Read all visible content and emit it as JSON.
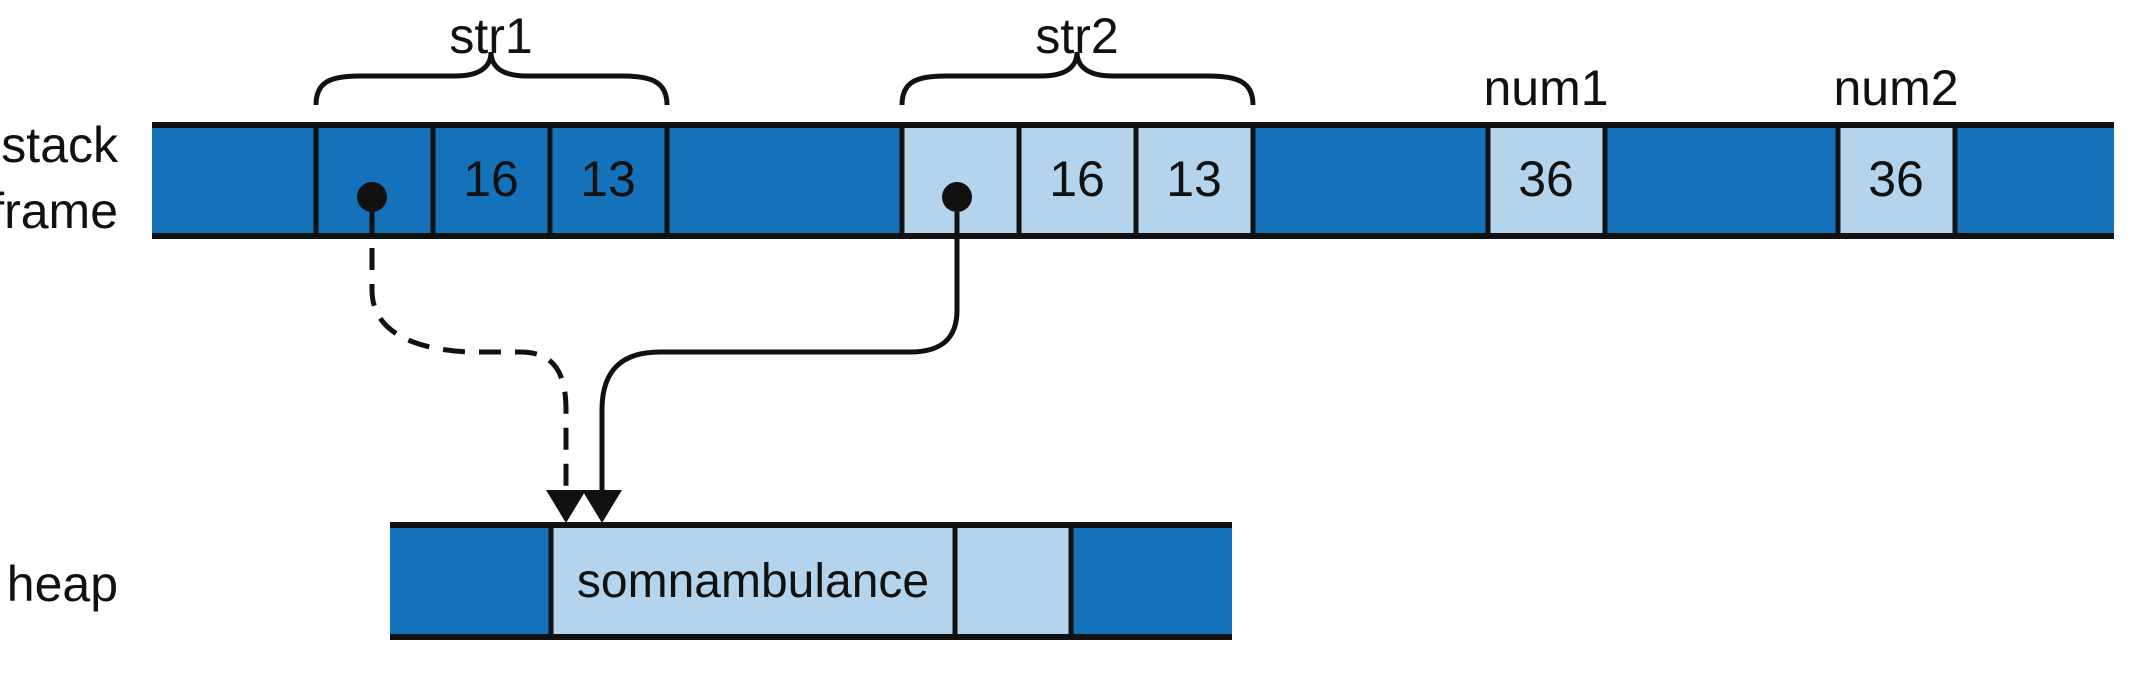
{
  "labels": {
    "stack_line1": "stack",
    "stack_line2": "frame",
    "heap": "heap"
  },
  "groups": {
    "str1": "str1",
    "str2": "str2",
    "num1": "num1",
    "num2": "num2"
  },
  "stack": {
    "str1_capacity": "16",
    "str1_length": "13",
    "str2_capacity": "16",
    "str2_length": "13",
    "num1_value": "36",
    "num2_value": "36"
  },
  "heap_buffer": {
    "text": "somnambulance"
  },
  "colors": {
    "dark_blue": "#1372b9",
    "light_blue": "#b3d4ec",
    "ink": "#111111",
    "background": "#ffffff"
  },
  "pointers": {
    "str1": "dashed (moved-from)",
    "str2": "solid (owner)"
  }
}
